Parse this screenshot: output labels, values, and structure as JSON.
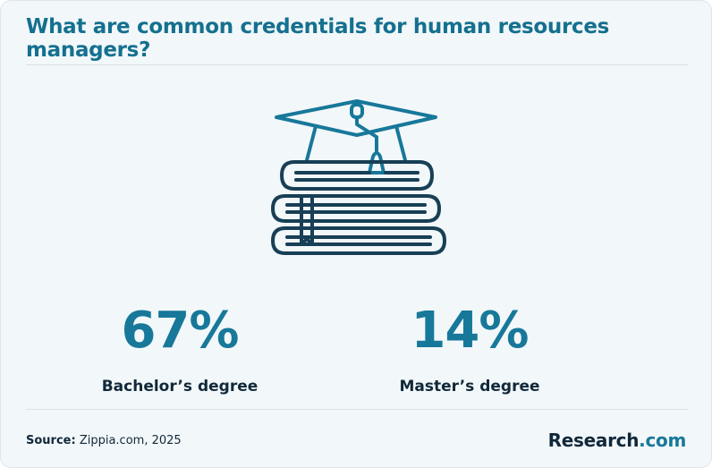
{
  "title": "What are common credentials for human resources managers?",
  "stats": [
    {
      "value": "67%",
      "label": "Bachelor’s degree"
    },
    {
      "value": "14%",
      "label": "Master’s degree"
    }
  ],
  "source": {
    "label": "Source:",
    "text": "Zippia.com, 2025"
  },
  "brand": {
    "name": "Research",
    "suffix": ".com"
  }
}
